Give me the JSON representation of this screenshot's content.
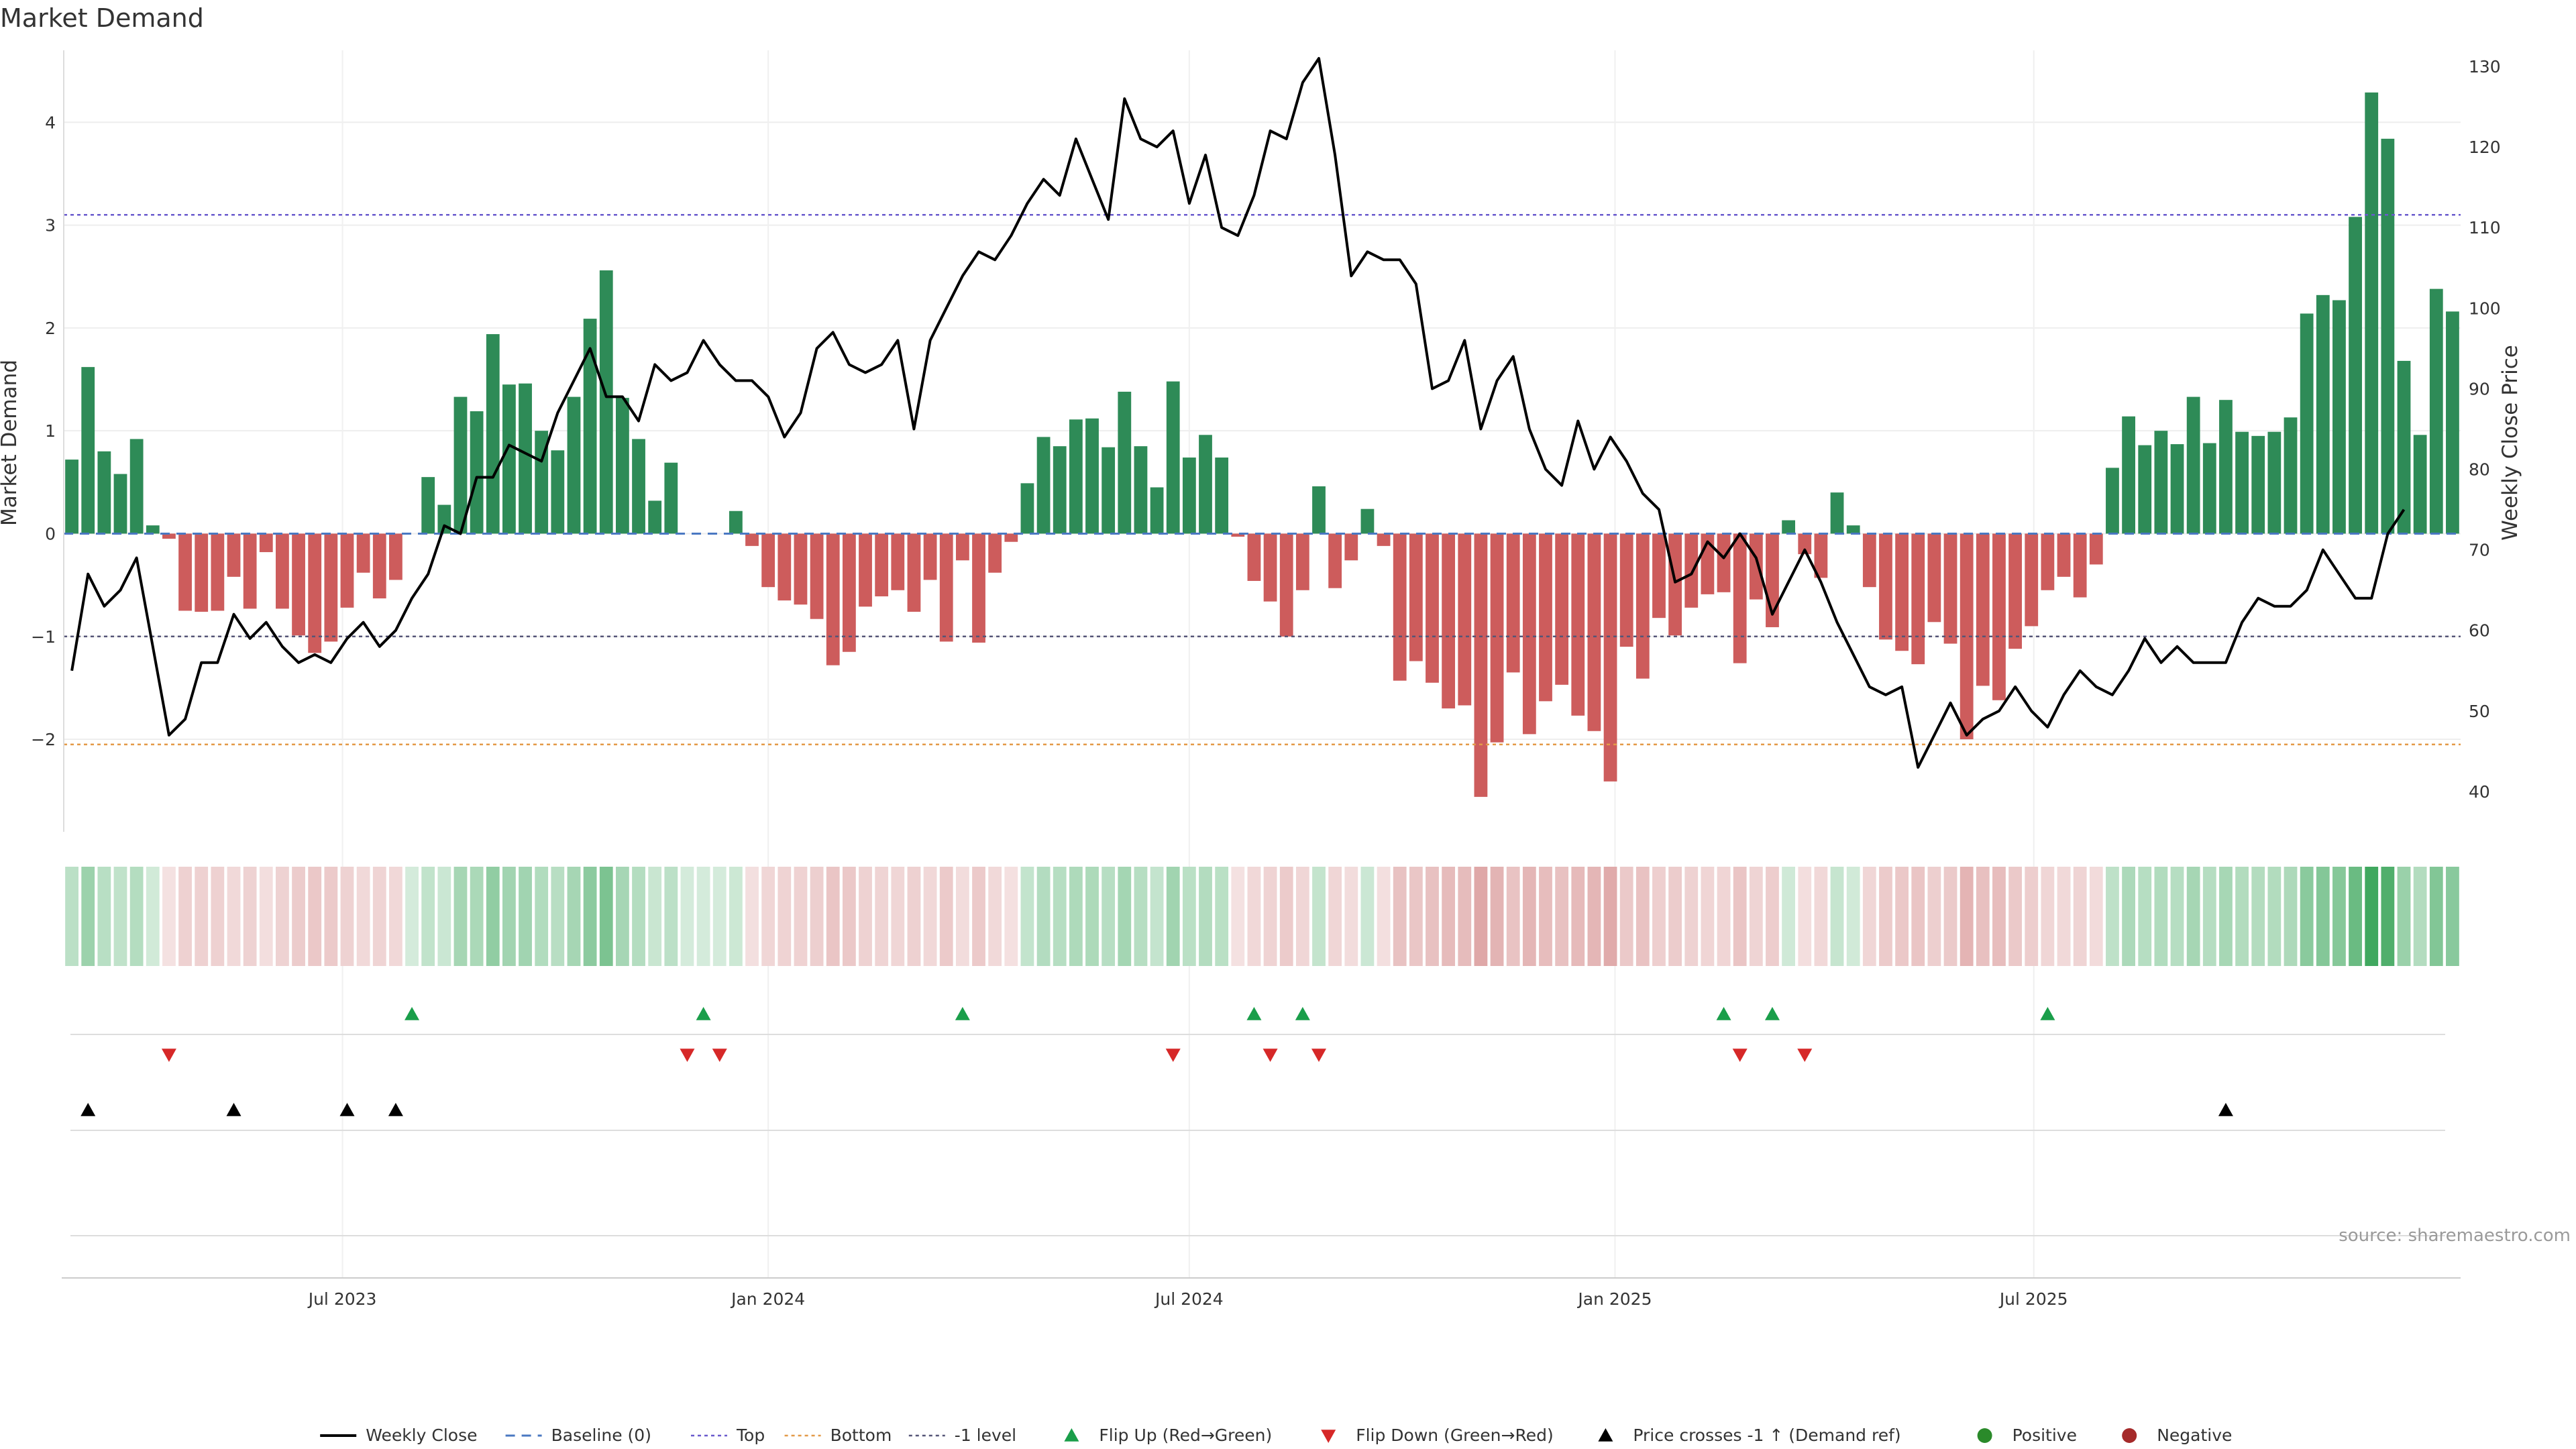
{
  "title": "Market Demand",
  "source": "source: sharemaestro.com",
  "chart_data": {
    "type": "bar",
    "start_date": "2023-03-06",
    "weekly_step_days": 7,
    "y_left": {
      "label": "Market Demand",
      "range": [
        -2.9,
        4.7
      ],
      "ticks": [
        -2,
        -1,
        0,
        1,
        2,
        3,
        4
      ]
    },
    "y_right": {
      "label": "Weekly Close Price",
      "range": [
        35,
        132
      ],
      "ticks": [
        40,
        50,
        60,
        70,
        80,
        90,
        100,
        110,
        120,
        130
      ]
    },
    "x_ticks": [
      "Jul 2023",
      "Jan 2024",
      "Jul 2024",
      "Jan 2025",
      "Jul 2025"
    ],
    "x_tick_dates": [
      "2023-07-01",
      "2024-01-01",
      "2024-07-01",
      "2025-01-01",
      "2025-07-01"
    ],
    "levels": {
      "baseline": 0,
      "top": 3.1,
      "bottom": -2.05,
      "minus_one": -1
    },
    "demand": [
      0.72,
      1.62,
      0.8,
      0.58,
      0.92,
      0.08,
      -0.05,
      -0.75,
      -0.76,
      -0.75,
      -0.42,
      -0.73,
      -0.18,
      -0.73,
      -0.99,
      -1.16,
      -1.05,
      -0.72,
      -0.38,
      -0.63,
      -0.45,
      0,
      0.55,
      0.28,
      1.33,
      1.19,
      1.94,
      1.45,
      1.46,
      1.0,
      0.81,
      1.33,
      2.09,
      2.56,
      1.32,
      0.92,
      0.32,
      0.69,
      0,
      0,
      0,
      0.22,
      -0.12,
      -0.52,
      -0.65,
      -0.69,
      -0.83,
      -1.28,
      -1.15,
      -0.71,
      -0.61,
      -0.55,
      -0.76,
      -0.45,
      -1.05,
      -0.26,
      -1.06,
      -0.38,
      -0.08,
      0.49,
      0.94,
      0.85,
      1.11,
      1.12,
      0.84,
      1.38,
      0.85,
      0.45,
      1.48,
      0.74,
      0.96,
      0.74,
      -0.03,
      -0.46,
      -0.66,
      -1.0,
      -0.55,
      0.46,
      -0.53,
      -0.26,
      0.24,
      -0.12,
      -1.43,
      -1.24,
      -1.45,
      -1.7,
      -1.67,
      -2.56,
      -2.03,
      -1.35,
      -1.95,
      -1.63,
      -1.47,
      -1.77,
      -1.92,
      -2.41,
      -1.1,
      -1.41,
      -0.82,
      -0.99,
      -0.72,
      -0.59,
      -0.57,
      -1.26,
      -0.64,
      -0.91,
      0.13,
      -0.2,
      -0.43,
      0.4,
      0.08,
      -0.52,
      -1.03,
      -1.14,
      -1.27,
      -0.86,
      -1.07,
      -2.0,
      -1.48,
      -1.62,
      -1.12,
      -0.9,
      -0.55,
      -0.42,
      -0.62,
      -0.3,
      0.64,
      1.14,
      0.86,
      1.0,
      0.87,
      1.33,
      0.88,
      1.3,
      0.99,
      0.95,
      0.99,
      1.13,
      2.14,
      2.32,
      2.27,
      3.08,
      4.29,
      3.84,
      1.68,
      0.96,
      2.38,
      2.16
    ],
    "close": [
      55,
      67,
      63,
      65,
      69,
      58,
      47,
      49,
      56,
      56,
      62,
      59,
      61,
      58,
      56,
      57,
      56,
      59,
      61,
      58,
      60,
      64,
      67,
      73,
      72,
      79,
      79,
      83,
      82,
      81,
      87,
      91,
      95,
      89,
      89,
      86,
      93,
      91,
      92,
      96,
      93,
      91,
      91,
      89,
      84,
      87,
      95,
      97,
      93,
      92,
      93,
      96,
      85,
      96,
      100,
      104,
      107,
      106,
      109,
      113,
      116,
      114,
      121,
      116,
      111,
      126,
      121,
      120,
      122,
      113,
      119,
      110,
      109,
      114,
      122,
      121,
      128,
      131,
      119,
      104,
      107,
      106,
      106,
      103,
      90,
      91,
      96,
      85,
      91,
      94,
      85,
      80,
      78,
      86,
      80,
      84,
      81,
      77,
      75,
      66,
      67,
      71,
      69,
      72,
      69,
      62,
      66,
      70,
      66,
      61,
      57,
      53,
      52,
      53,
      43,
      47,
      51,
      47,
      49,
      50,
      53,
      50,
      48,
      52,
      55,
      53,
      52,
      55,
      59,
      56,
      58,
      56,
      56,
      56,
      61,
      64,
      63,
      63,
      65,
      70,
      67,
      64,
      64,
      72,
      75
    ],
    "flip_up_weeks": [
      21,
      39,
      55,
      73,
      76,
      102,
      105,
      122
    ],
    "flip_down_weeks": [
      6,
      38,
      40,
      68,
      74,
      77,
      103,
      107
    ],
    "price_cross_weeks": [
      1,
      10,
      17,
      20,
      133
    ],
    "legend": [
      "Weekly Close",
      "Baseline (0)",
      "Top",
      "Bottom",
      "-1 level",
      "Flip Up (Red→Green)",
      "Flip Down (Green→Red)",
      "Price crosses -1 ↑ (Demand ref)",
      "Positive",
      "Negative"
    ],
    "colors": {
      "positive": "#2e8b57",
      "negative": "#cd5c5c",
      "close": "#000000",
      "baseline": "#4a78c2",
      "top": "#6a5acd",
      "bottom": "#e39a48",
      "minus_one": "#555577",
      "flip_up": "#1a9e4a",
      "flip_down": "#d62828",
      "cross": "#000000",
      "positive_dot": "#2a8a2a",
      "negative_dot": "#a52a2a"
    }
  }
}
